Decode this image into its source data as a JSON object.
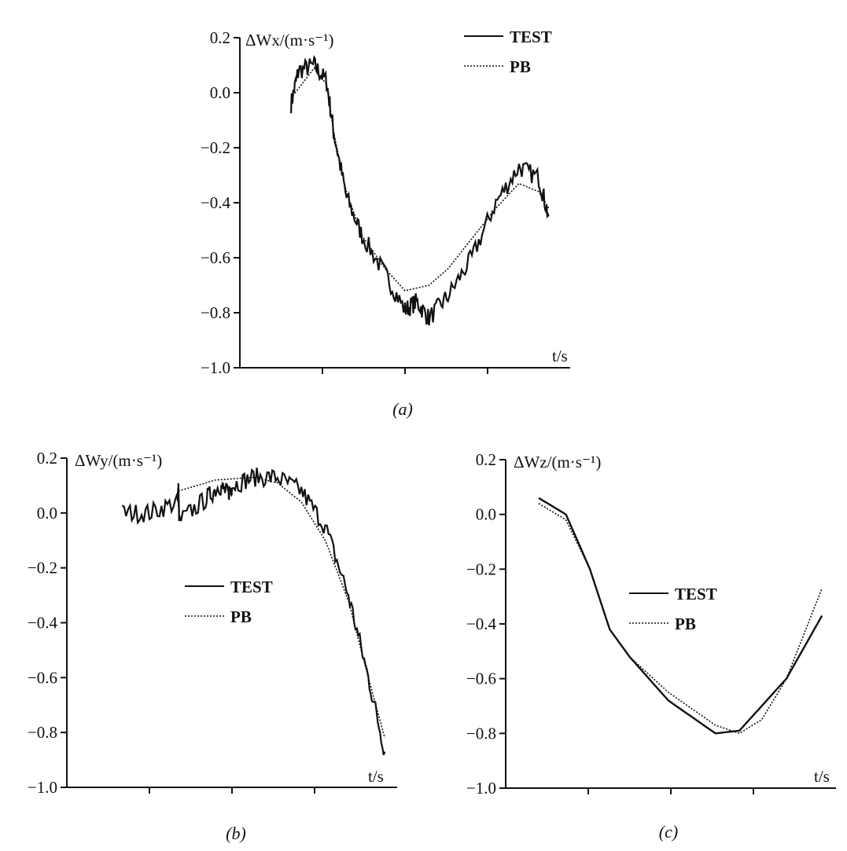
{
  "chart_data": [
    {
      "type": "line",
      "panel": "a",
      "caption": "(a)",
      "ylabel": "ΔWx/(m·s⁻¹)",
      "xlabel": "t/s",
      "ylim": [
        -1.0,
        0.2
      ],
      "yticks": [
        "0.2",
        "0.0",
        "-0.2",
        "-0.4",
        "-0.6",
        "-0.8",
        "-1.0"
      ],
      "xlim": [
        0,
        4
      ],
      "xtick_labels_shown": false,
      "legend": "top-right",
      "series": [
        {
          "name": "TEST",
          "style": "solid",
          "noisy": true,
          "x": [
            0.62,
            0.71,
            0.9,
            1.05,
            1.14,
            1.29,
            1.48,
            1.76,
            2.0,
            2.14,
            2.29,
            2.52,
            2.81,
            3.1,
            3.38,
            3.62,
            3.74
          ],
          "y": [
            -0.04,
            0.08,
            0.1,
            0.04,
            -0.15,
            -0.38,
            -0.52,
            -0.66,
            -0.79,
            -0.76,
            -0.82,
            -0.74,
            -0.6,
            -0.4,
            -0.27,
            -0.31,
            -0.45
          ]
        },
        {
          "name": "PB",
          "style": "dotted",
          "noisy": false,
          "x": [
            0.62,
            0.9,
            1.05,
            1.14,
            1.29,
            1.48,
            1.76,
            2.0,
            2.29,
            2.52,
            2.81,
            3.1,
            3.38,
            3.62,
            3.74
          ],
          "y": [
            -0.02,
            0.09,
            0.03,
            -0.15,
            -0.36,
            -0.52,
            -0.64,
            -0.72,
            -0.7,
            -0.64,
            -0.53,
            -0.42,
            -0.33,
            -0.36,
            -0.42
          ]
        }
      ]
    },
    {
      "type": "line",
      "panel": "b",
      "caption": "(b)",
      "ylabel": "ΔWy/(m·s⁻¹)",
      "xlabel": "t/s",
      "ylim": [
        -1.0,
        0.2
      ],
      "yticks": [
        "0.2",
        "0.0",
        "-0.2",
        "-0.4",
        "-0.6",
        "-0.8",
        "-1.0"
      ],
      "xlim": [
        0,
        4
      ],
      "xtick_labels_shown": false,
      "legend": "center",
      "series": [
        {
          "name": "TEST",
          "style": "solid",
          "noisy": true,
          "x": [
            0.67,
            1.0,
            1.34,
            1.35,
            1.36,
            1.68,
            1.85,
            1.95,
            2.0,
            2.26,
            2.55,
            2.84,
            3.13,
            3.41,
            3.65,
            3.85
          ],
          "y": [
            0.0,
            0.0,
            0.04,
            0.1,
            -0.03,
            0.05,
            0.1,
            0.07,
            0.1,
            0.13,
            0.13,
            0.08,
            -0.05,
            -0.3,
            -0.6,
            -0.87
          ]
        },
        {
          "name": "PB",
          "style": "dotted",
          "noisy": false,
          "x": [
            1.35,
            1.8,
            2.26,
            2.55,
            2.84,
            3.13,
            3.41,
            3.65,
            3.85
          ],
          "y": [
            0.08,
            0.12,
            0.13,
            0.11,
            0.04,
            -0.1,
            -0.32,
            -0.6,
            -0.82
          ]
        }
      ]
    },
    {
      "type": "line",
      "panel": "c",
      "caption": "(c)",
      "ylabel": "ΔWz/(m·s⁻¹)",
      "xlabel": "t/s",
      "ylim": [
        -1.0,
        0.2
      ],
      "yticks": [
        "0.2",
        "0.0",
        "-0.2",
        "-0.4",
        "-0.6",
        "-0.8",
        "-1.0"
      ],
      "xlim": [
        0,
        4
      ],
      "xtick_labels_shown": false,
      "legend": "center",
      "series": [
        {
          "name": "TEST",
          "style": "solid",
          "noisy": false,
          "x": [
            0.4,
            0.73,
            1.02,
            1.26,
            1.5,
            1.97,
            2.54,
            2.83,
            3.4,
            3.83
          ],
          "y": [
            0.06,
            0.0,
            -0.2,
            -0.42,
            -0.52,
            -0.68,
            -0.8,
            -0.79,
            -0.6,
            -0.37
          ]
        },
        {
          "name": "PB",
          "style": "dotted",
          "noisy": false,
          "x": [
            0.4,
            0.73,
            1.02,
            1.26,
            1.5,
            1.97,
            2.54,
            2.83,
            3.1,
            3.4,
            3.83
          ],
          "y": [
            0.04,
            -0.02,
            -0.2,
            -0.42,
            -0.52,
            -0.65,
            -0.77,
            -0.8,
            -0.75,
            -0.6,
            -0.27
          ]
        }
      ]
    }
  ]
}
